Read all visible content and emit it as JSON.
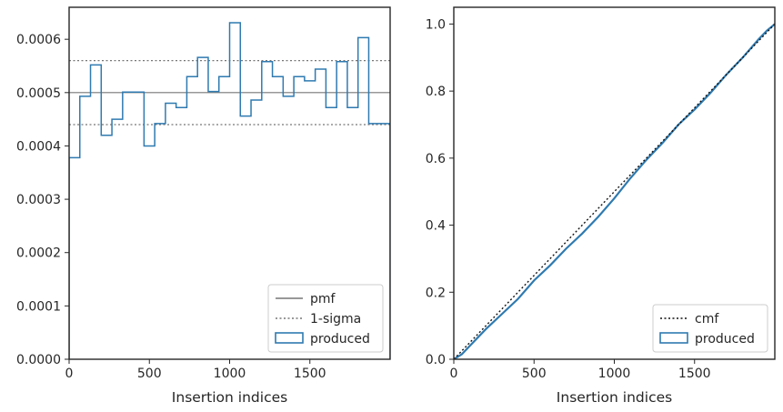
{
  "chart_data": [
    {
      "type": "line",
      "title": "",
      "xlabel": "Insertion indices",
      "ylabel": "",
      "xlim": [
        0,
        2000
      ],
      "ylim": [
        0,
        0.00066
      ],
      "xticks": [
        0,
        500,
        1000,
        1500
      ],
      "xtick_labels": [
        "0",
        "500",
        "1000",
        "1500"
      ],
      "yticks": [
        0,
        0.0001,
        0.0002,
        0.0003,
        0.0004,
        0.0005,
        0.0006
      ],
      "ytick_labels": [
        "0.0000",
        "0.0001",
        "0.0002",
        "0.0003",
        "0.0004",
        "0.0005",
        "0.0006"
      ],
      "legend_position": "lower-right",
      "bin_width": 66.67,
      "series": [
        {
          "name": "pmf",
          "kind": "hline",
          "y": 0.0005,
          "color": "#777777",
          "style": "solid"
        },
        {
          "name": "1-sigma",
          "kind": "hlines",
          "y": [
            0.00044,
            0.00056
          ],
          "color": "#777777",
          "style": "dotted"
        },
        {
          "name": "produced",
          "kind": "step-histogram",
          "color": "#2f7ab0",
          "x_edges": [
            0,
            66.67,
            133.33,
            200,
            266.67,
            333.33,
            400,
            466.67,
            533.33,
            600,
            666.67,
            733.33,
            800,
            866.67,
            933.33,
            1000,
            1066.67,
            1133.33,
            1200,
            1266.67,
            1333.33,
            1400,
            1466.67,
            1533.33,
            1600,
            1666.67,
            1733.33,
            1800,
            1866.67,
            1933.33,
            2000
          ],
          "values": [
            0.000378,
            0.000493,
            0.000552,
            0.00042,
            0.00045,
            0.000501,
            0.000501,
            0.0004,
            0.000442,
            0.00048,
            0.000472,
            0.00053,
            0.000566,
            0.000502,
            0.00053,
            0.000631,
            0.000456,
            0.000486,
            0.000558,
            0.00053,
            0.000493,
            0.00053,
            0.000522,
            0.000544,
            0.000472,
            0.000558,
            0.000472,
            0.000603,
            0.000442,
            0.000442
          ]
        }
      ]
    },
    {
      "type": "line",
      "title": "",
      "xlabel": "Insertion indices",
      "ylabel": "",
      "xlim": [
        0,
        2000
      ],
      "ylim": [
        0,
        1.05
      ],
      "xticks": [
        0,
        500,
        1000,
        1500
      ],
      "xtick_labels": [
        "0",
        "500",
        "1000",
        "1500"
      ],
      "yticks": [
        0,
        0.2,
        0.4,
        0.6,
        0.8,
        1.0
      ],
      "ytick_labels": [
        "0.0",
        "0.2",
        "0.4",
        "0.6",
        "0.8",
        "1.0"
      ],
      "legend_position": "lower-right",
      "series": [
        {
          "name": "cmf",
          "color": "#111111",
          "style": "dotted",
          "x": [
            0,
            2000
          ],
          "y": [
            0,
            1.0
          ]
        },
        {
          "name": "produced",
          "color": "#2f7ab0",
          "style": "solid",
          "x": [
            0,
            50,
            100,
            200,
            300,
            400,
            500,
            600,
            700,
            800,
            900,
            1000,
            1100,
            1200,
            1300,
            1400,
            1500,
            1600,
            1700,
            1800,
            1900,
            1950,
            2000
          ],
          "y": [
            0,
            0.015,
            0.04,
            0.09,
            0.135,
            0.18,
            0.235,
            0.28,
            0.33,
            0.375,
            0.425,
            0.48,
            0.54,
            0.595,
            0.645,
            0.7,
            0.745,
            0.795,
            0.85,
            0.9,
            0.955,
            0.98,
            1.0
          ]
        }
      ]
    }
  ]
}
